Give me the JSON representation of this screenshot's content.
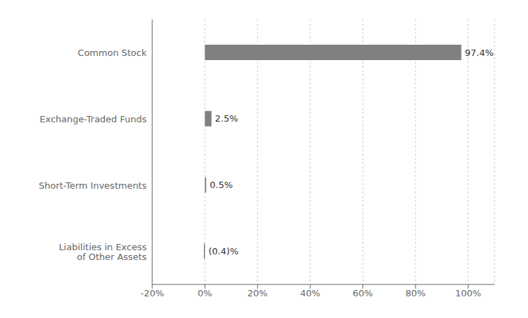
{
  "chart_data": {
    "type": "bar",
    "orientation": "horizontal",
    "categories": [
      "Common Stock",
      "Exchange-Traded Funds",
      "Short-Term Investments",
      "Liabilities in Excess\nof Other Assets"
    ],
    "values": [
      97.4,
      2.5,
      0.5,
      -0.4
    ],
    "value_labels": [
      "97.4%",
      "2.5%",
      "0.5%",
      "(0.4)%"
    ],
    "data_labels": true,
    "color": "#808080",
    "xlim": [
      -20,
      110
    ],
    "xticks": [
      {
        "value": -20,
        "label": "-20%"
      },
      {
        "value": 0,
        "label": "0%"
      },
      {
        "value": 20,
        "label": "20%"
      },
      {
        "value": 40,
        "label": "40%"
      },
      {
        "value": 60,
        "label": "60%"
      },
      {
        "value": 80,
        "label": "80%"
      },
      {
        "value": 100,
        "label": "100%"
      }
    ],
    "grid": true
  }
}
